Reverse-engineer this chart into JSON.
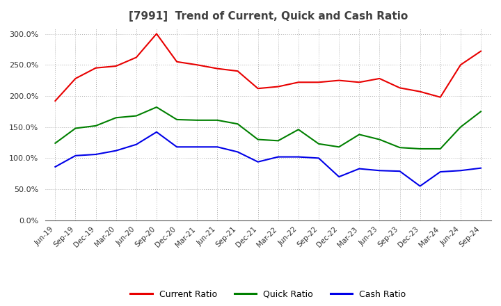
{
  "title": "[7991]  Trend of Current, Quick and Cash Ratio",
  "x_labels": [
    "Jun-19",
    "Sep-19",
    "Dec-19",
    "Mar-20",
    "Jun-20",
    "Sep-20",
    "Dec-20",
    "Mar-21",
    "Jun-21",
    "Sep-21",
    "Dec-21",
    "Mar-22",
    "Jun-22",
    "Sep-22",
    "Dec-22",
    "Mar-23",
    "Jun-23",
    "Sep-23",
    "Dec-23",
    "Mar-24",
    "Jun-24",
    "Sep-24"
  ],
  "current_ratio": [
    192,
    228,
    245,
    248,
    262,
    300,
    255,
    250,
    244,
    240,
    212,
    215,
    222,
    222,
    225,
    222,
    228,
    213,
    207,
    198,
    250,
    272
  ],
  "quick_ratio": [
    124,
    148,
    152,
    165,
    168,
    182,
    162,
    161,
    161,
    155,
    130,
    128,
    146,
    123,
    118,
    138,
    130,
    117,
    115,
    115,
    150,
    175
  ],
  "cash_ratio": [
    86,
    104,
    106,
    112,
    122,
    142,
    118,
    118,
    118,
    110,
    94,
    102,
    102,
    100,
    70,
    83,
    80,
    79,
    55,
    78,
    80,
    84
  ],
  "ylim": [
    0,
    310
  ],
  "yticks": [
    0,
    50,
    100,
    150,
    200,
    250,
    300
  ],
  "current_color": "#e80000",
  "quick_color": "#008000",
  "cash_color": "#0000e8",
  "bg_color": "#ffffff",
  "plot_bg_color": "#ffffff",
  "grid_color": "#aaaaaa",
  "title_color": "#404040",
  "legend_labels": [
    "Current Ratio",
    "Quick Ratio",
    "Cash Ratio"
  ]
}
